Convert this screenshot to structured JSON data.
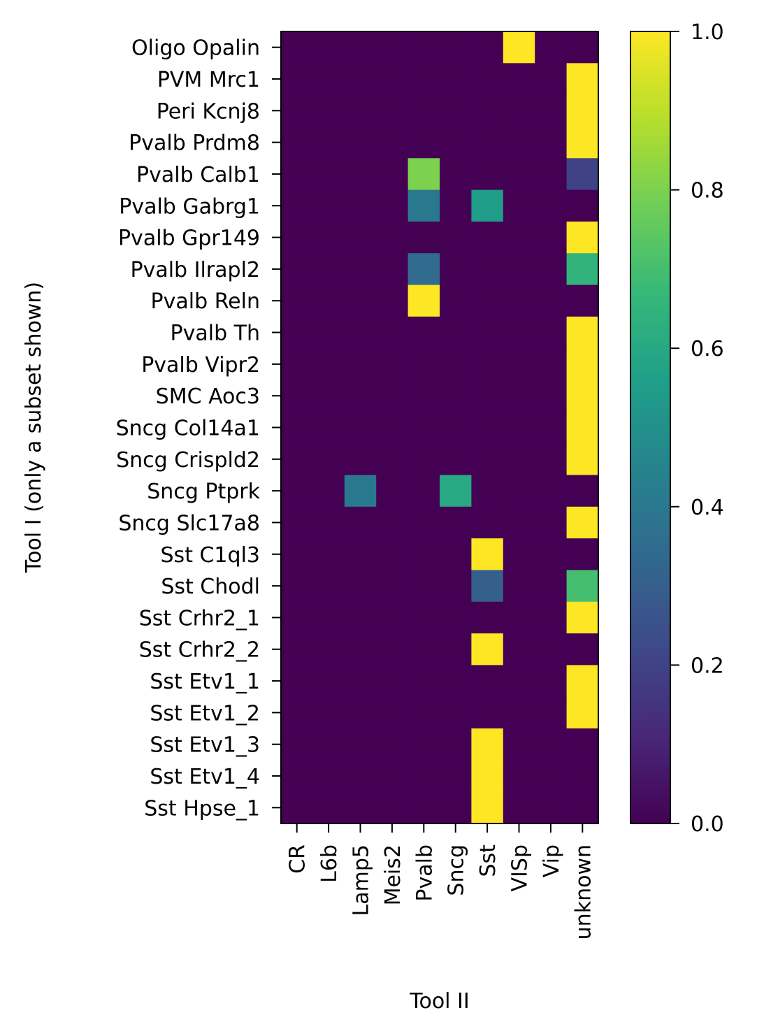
{
  "chart_data": {
    "type": "heatmap",
    "title": "",
    "xlabel": "Tool II",
    "ylabel": "Tool I (only a subset shown)",
    "x_categories": [
      "CR",
      "L6b",
      "Lamp5",
      "Meis2",
      "Pvalb",
      "Sncg",
      "Sst",
      "VISp",
      "Vip",
      "unknown"
    ],
    "y_categories": [
      "Oligo Opalin",
      "PVM Mrc1",
      "Peri Kcnj8",
      "Pvalb  Prdm8",
      "Pvalb Calb1",
      "Pvalb Gabrg1",
      "Pvalb Gpr149",
      "Pvalb Ilrapl2",
      "Pvalb Reln",
      "Pvalb Th",
      "Pvalb Vipr2",
      "SMC Aoc3",
      "Sncg Col14a1",
      "Sncg Crispld2",
      "Sncg Ptprk",
      "Sncg Slc17a8",
      "Sst C1ql3",
      "Sst Chodl",
      "Sst Crhr2_1",
      "Sst Crhr2_2",
      "Sst Etv1_1",
      "Sst Etv1_2",
      "Sst Etv1_3",
      "Sst Etv1_4",
      "Sst Hpse_1"
    ],
    "values": [
      [
        0,
        0,
        0,
        0,
        0,
        0,
        0,
        1,
        0,
        0
      ],
      [
        0,
        0,
        0,
        0,
        0,
        0,
        0,
        0,
        0,
        1
      ],
      [
        0,
        0,
        0,
        0,
        0,
        0,
        0,
        0,
        0,
        1
      ],
      [
        0,
        0,
        0,
        0,
        0,
        0,
        0,
        0,
        0,
        1
      ],
      [
        0,
        0,
        0,
        0,
        0.8,
        0,
        0,
        0,
        0,
        0.2
      ],
      [
        0,
        0,
        0,
        0,
        0.4,
        0,
        0.55,
        0,
        0,
        0
      ],
      [
        0,
        0,
        0,
        0,
        0,
        0,
        0,
        0,
        0,
        1
      ],
      [
        0,
        0,
        0,
        0,
        0.35,
        0,
        0,
        0,
        0,
        0.65
      ],
      [
        0,
        0,
        0,
        0,
        1,
        0,
        0,
        0,
        0,
        0
      ],
      [
        0,
        0,
        0,
        0,
        0,
        0,
        0,
        0,
        0,
        1
      ],
      [
        0,
        0,
        0,
        0,
        0,
        0,
        0,
        0,
        0,
        1
      ],
      [
        0,
        0,
        0,
        0,
        0,
        0,
        0,
        0,
        0,
        1
      ],
      [
        0,
        0,
        0,
        0,
        0,
        0,
        0,
        0,
        0,
        1
      ],
      [
        0,
        0,
        0,
        0,
        0,
        0,
        0,
        0,
        0,
        1
      ],
      [
        0,
        0,
        0.4,
        0,
        0,
        0.6,
        0,
        0,
        0,
        0
      ],
      [
        0,
        0,
        0,
        0,
        0,
        0,
        0,
        0,
        0,
        1
      ],
      [
        0,
        0,
        0,
        0,
        0,
        0,
        1,
        0,
        0,
        0
      ],
      [
        0,
        0,
        0,
        0,
        0,
        0,
        0.3,
        0,
        0,
        0.7
      ],
      [
        0,
        0,
        0,
        0,
        0,
        0,
        0,
        0,
        0,
        1
      ],
      [
        0,
        0,
        0,
        0,
        0,
        0,
        1,
        0,
        0,
        0
      ],
      [
        0,
        0,
        0,
        0,
        0,
        0,
        0,
        0,
        0,
        1
      ],
      [
        0,
        0,
        0,
        0,
        0,
        0,
        0,
        0,
        0,
        1
      ],
      [
        0,
        0,
        0,
        0,
        0,
        0,
        1,
        0,
        0,
        0
      ],
      [
        0,
        0,
        0,
        0,
        0,
        0,
        1,
        0,
        0,
        0
      ],
      [
        0,
        0,
        0,
        0,
        0,
        0,
        1,
        0,
        0,
        0
      ]
    ],
    "colormap": "viridis",
    "colorbar": {
      "range": [
        0,
        1
      ],
      "ticks": [
        "0.0",
        "0.2",
        "0.4",
        "0.6",
        "0.8",
        "1.0"
      ]
    }
  }
}
